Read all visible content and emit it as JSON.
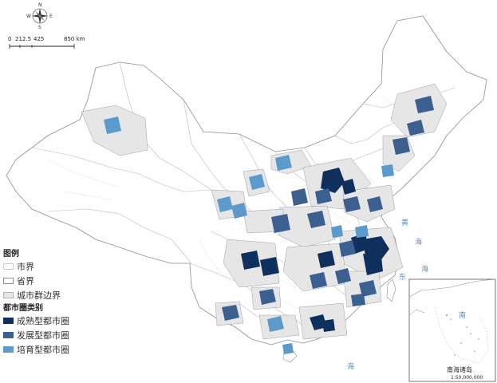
{
  "compass": {
    "n": "N",
    "s": "S",
    "w": "W",
    "e": "E"
  },
  "scale_bar": {
    "ticks": [
      "0",
      "212.5",
      "425",
      "850 km"
    ]
  },
  "legend": {
    "title": "图例",
    "items": [
      {
        "label": "市界"
      },
      {
        "label": "省界"
      },
      {
        "label": "城市群边界"
      }
    ],
    "category_title": "都市圈类别",
    "categories": [
      {
        "label": "成熟型都市圈",
        "color": "#0f2f5c"
      },
      {
        "label": "发展型都市圈",
        "color": "#3b5f8e"
      },
      {
        "label": "培育型都市圈",
        "color": "#5c9acb"
      }
    ]
  },
  "sea_labels": [
    {
      "text": "黄"
    },
    {
      "text": "海"
    },
    {
      "text": "东"
    },
    {
      "text": "海"
    },
    {
      "text": "南"
    },
    {
      "text": "海"
    }
  ],
  "inset": {
    "title": "南海诸岛",
    "scale": "1:50,000,000"
  },
  "colors": {
    "mature": "#0f2f5c",
    "developing": "#3b5f8e",
    "nurturing": "#5c9acb",
    "cluster": "#e6e6e6",
    "land": "#ffffff",
    "border": "#9aa0a8",
    "sea_text": "#5a8fc4"
  }
}
